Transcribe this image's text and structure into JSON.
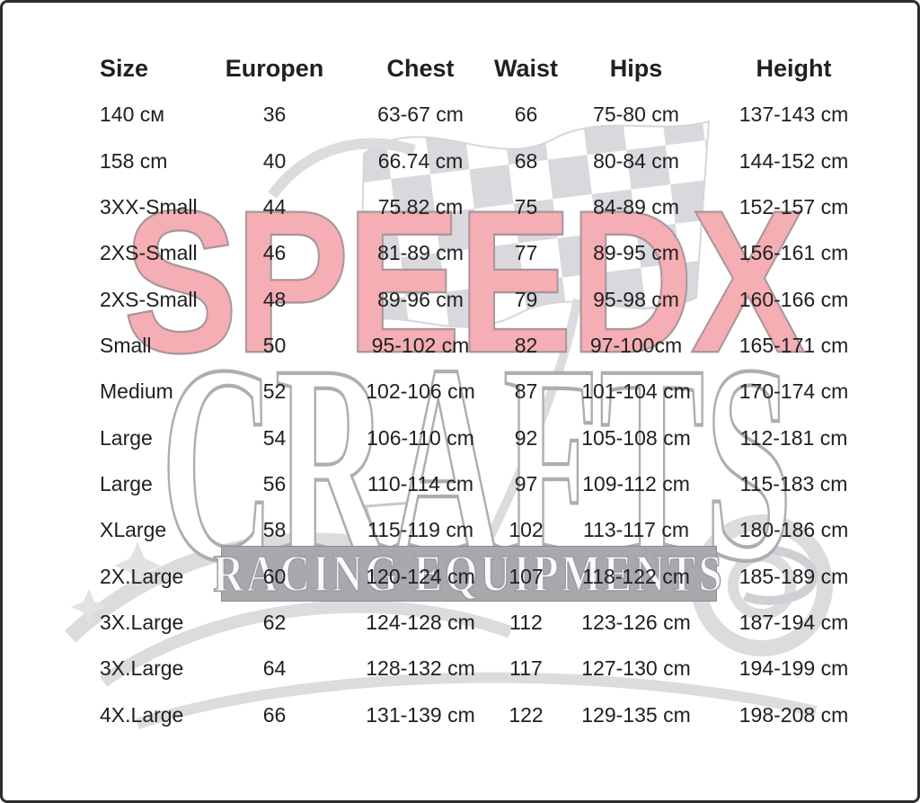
{
  "page": {
    "background_color": "#ffffff",
    "border_color": "#2d2d2f",
    "text_color": "#202022"
  },
  "watermark": {
    "brand_line1": "SPEEDX",
    "brand_line2": "CRAFTS",
    "banner_text": "RACING EQUIPMENTS",
    "brand_pink": "#f5aeb3",
    "banner_gray": "#a8a9ad",
    "graphic_gray": "#dcdcdf",
    "graphic": "go-kart-with-checkered-flag"
  },
  "size_chart": {
    "columns": [
      "Size",
      "Europen",
      "Chest",
      "Waist",
      "Hips",
      "Height"
    ],
    "rows": [
      [
        "140 см",
        "36",
        "63-67 cm",
        "66",
        "75-80 cm",
        "137-143 cm"
      ],
      [
        "158 cm",
        "40",
        "66.74 cm",
        "68",
        "80-84 cm",
        "144-152 cm"
      ],
      [
        "3XX-Small",
        "44",
        "75.82 cm",
        "75",
        "84-89 cm",
        "152-157 cm"
      ],
      [
        "2XS-Small",
        "46",
        "81-89 cm",
        "77",
        "89-95 cm",
        "156-161 cm"
      ],
      [
        "2XS-Small",
        "48",
        "89-96 cm",
        "79",
        "95-98 cm",
        "160-166 cm"
      ],
      [
        "Small",
        "50",
        "95-102 cm",
        "82",
        "97-100cm",
        "165-171 cm"
      ],
      [
        "Medium",
        "52",
        "102-106 cm",
        "87",
        "101-104 cm",
        "170-174 cm"
      ],
      [
        "Large",
        "54",
        "106-110 cm",
        "92",
        "105-108 cm",
        "112-181 cm"
      ],
      [
        "Large",
        "56",
        "110-114 cm",
        "97",
        "109-112 cm",
        "115-183 cm"
      ],
      [
        "XLarge",
        "58",
        "115-119 cm",
        "102",
        "113-117 cm",
        "180-186 cm"
      ],
      [
        "2X.Large",
        "60",
        "120-124 cm",
        "107",
        "118-122 cm",
        "185-189 cm"
      ],
      [
        "3X.Large",
        "62",
        "124-128 cm",
        "112",
        "123-126 cm",
        "187-194 cm"
      ],
      [
        "3X.Large",
        "64",
        "128-132 cm",
        "117",
        "127-130 cm",
        "194-199 cm"
      ],
      [
        "4X.Large",
        "66",
        "131-139 cm",
        "122",
        "129-135 cm",
        "198-208 cm"
      ]
    ]
  }
}
